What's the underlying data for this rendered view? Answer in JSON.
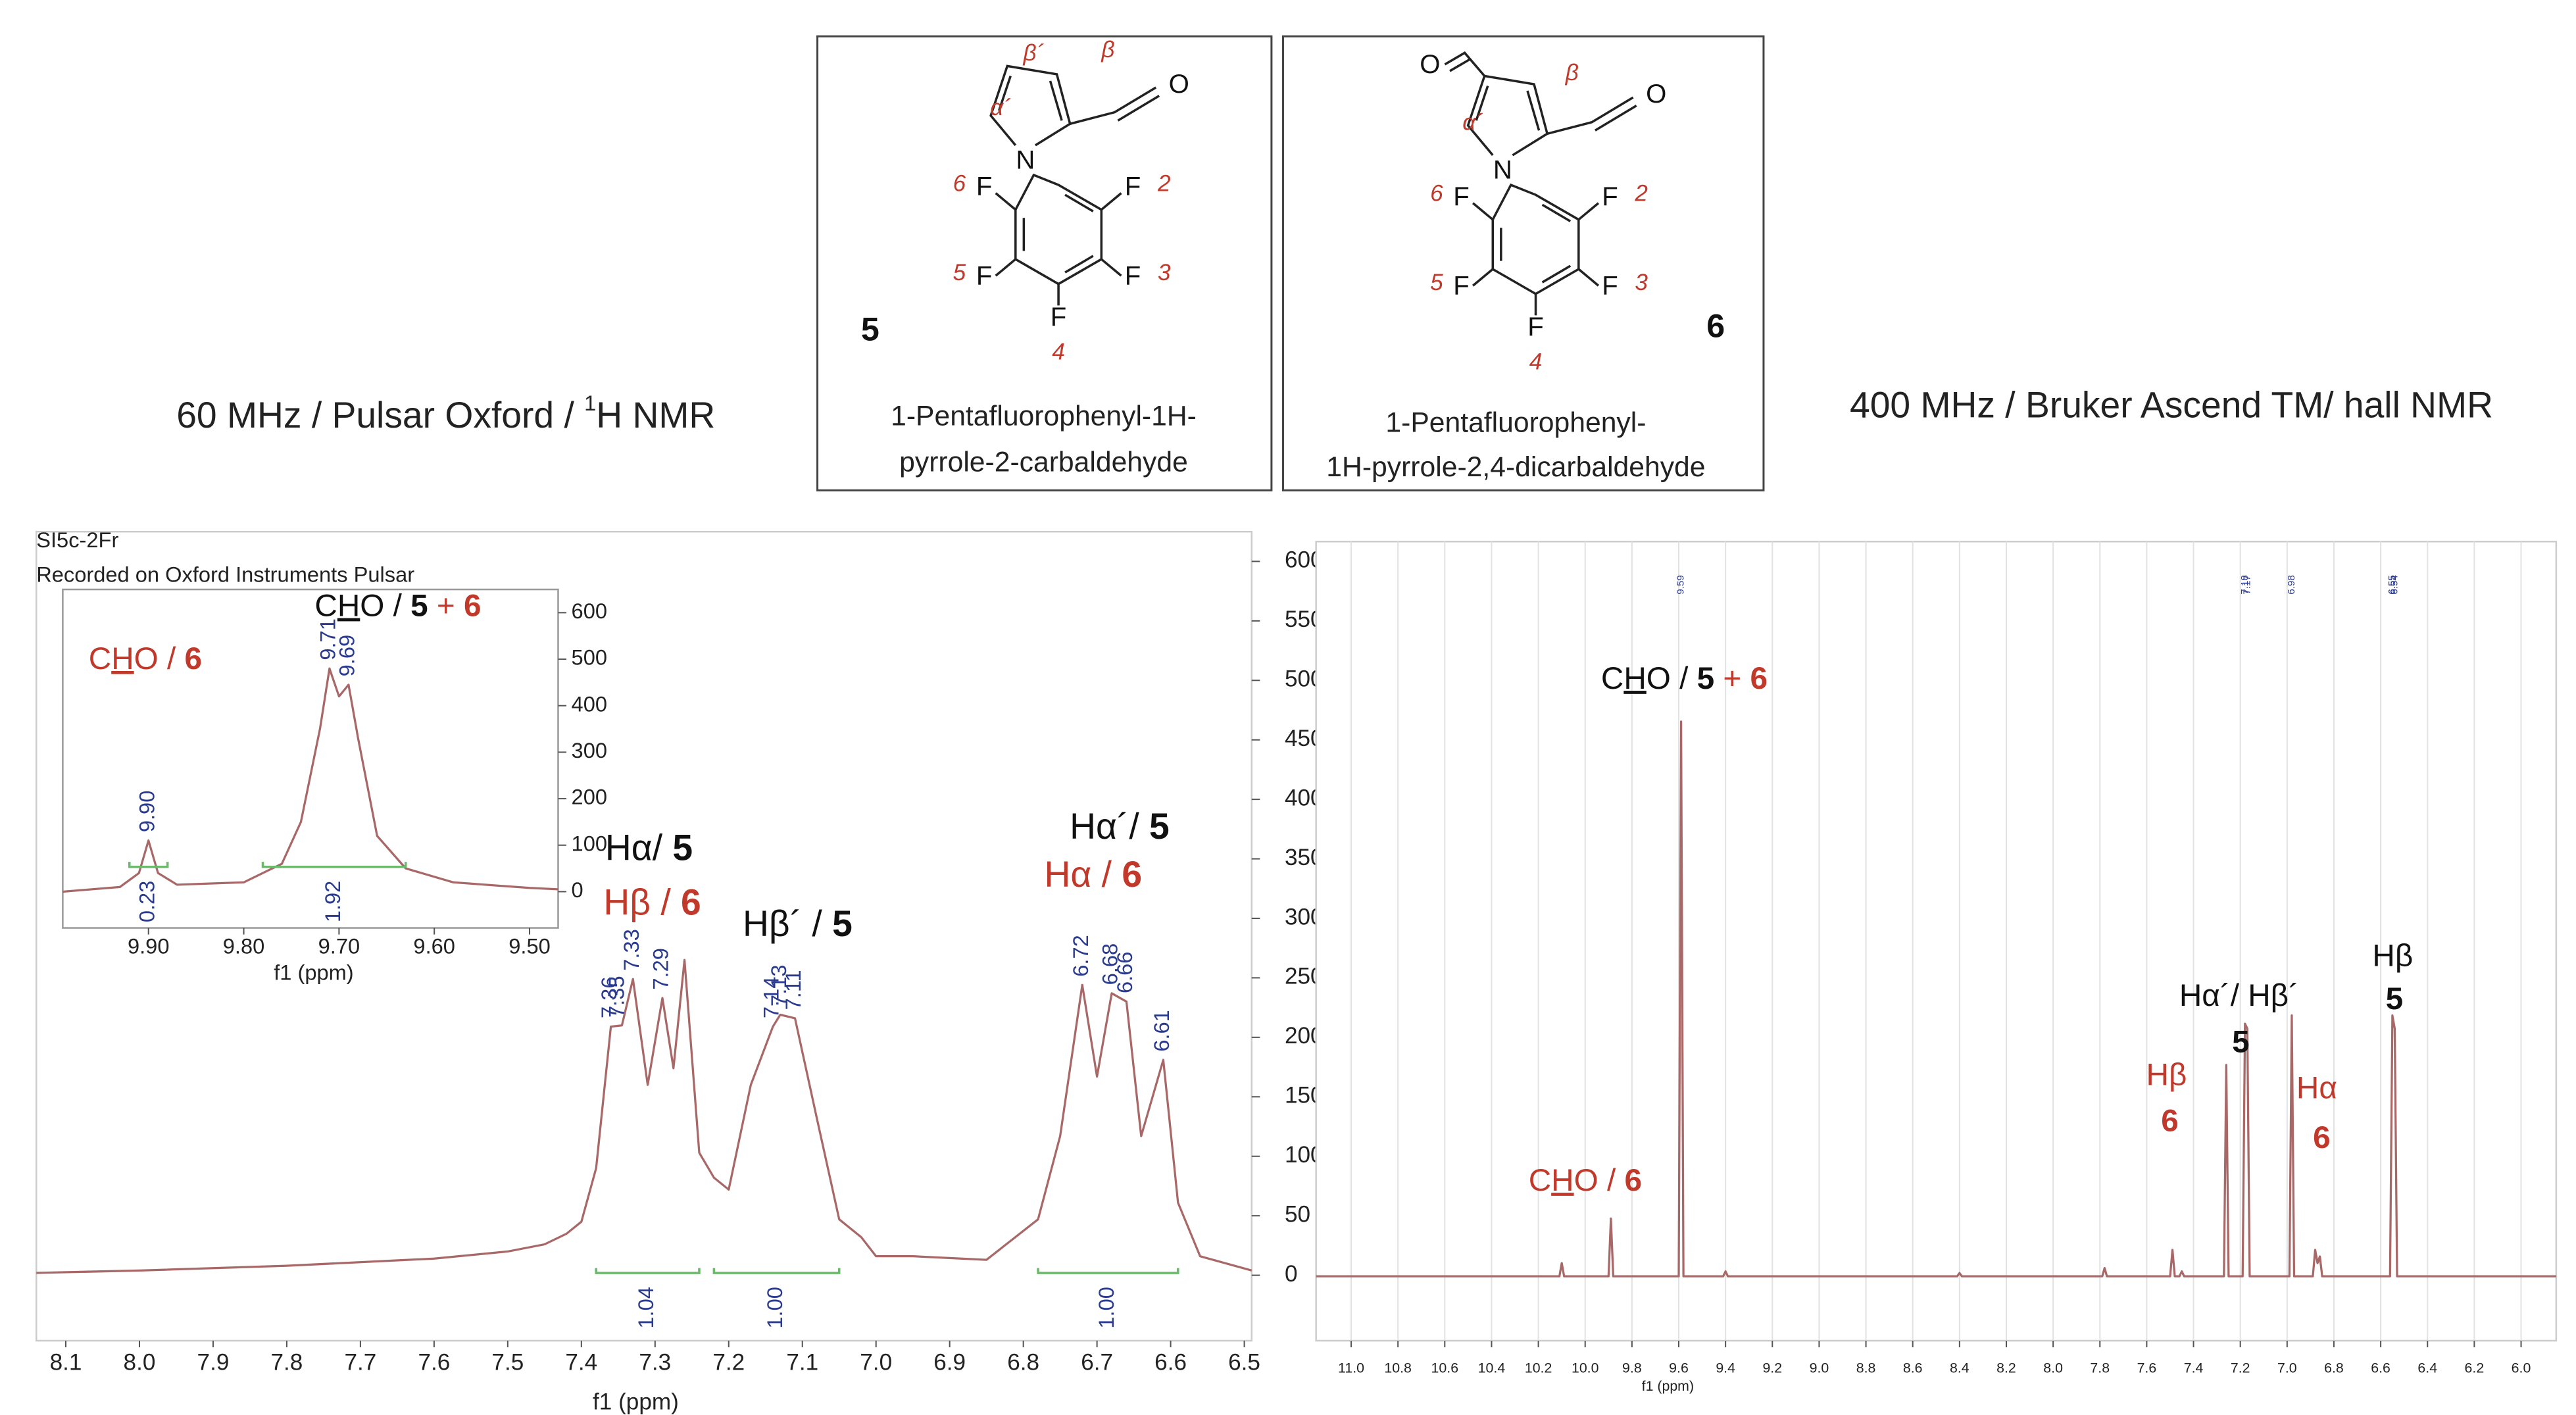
{
  "header": {
    "left_caption": [
      "60 MHz / Pulsar Oxford / ",
      "1",
      "H NMR"
    ],
    "right_caption": "400 MHz / Bruker Ascend TM/ hall NMR"
  },
  "compounds": [
    {
      "number": "5",
      "name_lines": [
        "1-Pentafluorophenyl-1H-",
        "pyrrole-2-carbaldehyde"
      ],
      "atom_labels": [
        "N",
        "O",
        "F",
        "F",
        "F",
        "F",
        "F"
      ],
      "position_labels": [
        "β´",
        "β",
        "α´",
        "6",
        "2",
        "5",
        "3",
        "4"
      ]
    },
    {
      "number": "6",
      "name_lines": [
        "1-Pentafluorophenyl-",
        "1H-pyrrole-2,4-dicarbaldehyde"
      ],
      "atom_labels": [
        "O",
        "N",
        "O",
        "F",
        "F",
        "F",
        "F",
        "F"
      ],
      "position_labels": [
        "β",
        "α´",
        "6",
        "2",
        "5",
        "3",
        "4"
      ]
    }
  ],
  "chart_data": [
    {
      "type": "line",
      "title": "SI5c-2Fr",
      "subtitle": "Recorded on Oxford Instruments Pulsar",
      "x_label": "f1 (ppm)",
      "color": "#a86868",
      "x": [
        8.14,
        8.0,
        7.8,
        7.6,
        7.5,
        7.45,
        7.42,
        7.4,
        7.38,
        7.36,
        7.345,
        7.33,
        7.31,
        7.29,
        7.275,
        7.26,
        7.24,
        7.22,
        7.2,
        7.17,
        7.14,
        7.13,
        7.11,
        7.08,
        7.05,
        7.02,
        7.0,
        6.95,
        6.85,
        6.78,
        6.75,
        6.72,
        6.7,
        6.68,
        6.66,
        6.64,
        6.61,
        6.59,
        6.56,
        6.49
      ],
      "values": [
        2,
        4,
        8,
        14,
        20,
        26,
        35,
        45,
        90,
        209,
        210,
        249,
        160,
        233,
        174,
        265,
        103,
        82,
        72,
        160,
        209,
        219,
        216,
        131,
        47,
        32,
        16,
        16,
        13,
        47,
        117,
        244,
        167,
        237,
        230,
        117,
        181,
        61,
        16,
        4
      ],
      "xlim": [
        8.14,
        6.49
      ],
      "xticks": [
        8.1,
        {
          "value": 8,
          "label": "8.0"
        },
        7.9,
        7.8,
        7.7,
        7.6,
        7.5,
        7.4,
        7.3,
        7.2,
        7.1,
        {
          "value": 7,
          "label": "7.0"
        },
        6.9,
        6.8,
        6.7,
        6.6,
        6.5
      ],
      "ylim": [
        -55,
        625
      ],
      "yticks": [
        0,
        50,
        100,
        150,
        200,
        250,
        300,
        350,
        400,
        450,
        500,
        550,
        600
      ],
      "peak_labels": [
        7.36,
        7.35,
        7.33,
        7.29,
        7.14,
        7.13,
        7.11,
        6.72,
        6.68,
        6.66,
        6.61
      ],
      "integrals": [
        {
          "from": 7.38,
          "to": 7.24,
          "value": 1.04
        },
        {
          "from": 7.22,
          "to": 7.05,
          "value": {
            "value": 1,
            "label": "1.00"
          }
        },
        {
          "from": 6.78,
          "to": 6.59,
          "value": {
            "value": 1,
            "label": "1.00"
          }
        }
      ],
      "annotations": [
        {
          "parts": [
            {
              "text": "Hα/ "
            },
            {
              "text": "5",
              "bold": true
            }
          ]
        },
        {
          "parts": [
            {
              "text": "Hβ / ",
              "color": "#c0392b"
            },
            {
              "text": "6",
              "bold": true,
              "color": "#c0392b"
            }
          ]
        },
        {
          "parts": [
            {
              "text": "Hβ´ / "
            },
            {
              "text": "5",
              "bold": true
            }
          ]
        },
        {
          "parts": [
            {
              "text": "Hα´/ "
            },
            {
              "text": "5",
              "bold": true
            }
          ]
        },
        {
          "parts": [
            {
              "text": "Hα  / ",
              "color": "#c0392b"
            },
            {
              "text": "6",
              "bold": true,
              "color": "#c0392b"
            }
          ]
        }
      ]
    },
    {
      "type": "line",
      "x_label": "f1 (ppm)",
      "color": "#a86868",
      "x": [
        9.99,
        9.93,
        9.91,
        9.9,
        9.89,
        9.87,
        9.8,
        9.76,
        9.74,
        9.72,
        9.71,
        9.7,
        9.69,
        9.68,
        9.66,
        9.63,
        9.58,
        9.5,
        9.47
      ],
      "values": [
        0,
        10,
        40,
        110,
        40,
        15,
        20,
        60,
        150,
        350,
        480,
        420,
        445,
        330,
        120,
        50,
        20,
        8,
        5
      ],
      "xlim": [
        9.99,
        9.47
      ],
      "xticks": [
        {
          "value": 9.9,
          "label": "9.90"
        },
        {
          "value": 9.8,
          "label": "9.80"
        },
        {
          "value": 9.7,
          "label": "9.70"
        },
        {
          "value": 9.6,
          "label": "9.60"
        },
        {
          "value": 9.5,
          "label": "9.50"
        }
      ],
      "ylim": [
        -78,
        650
      ],
      "yticks": [
        0,
        100,
        200,
        300,
        400,
        500,
        600
      ],
      "peak_labels": [
        {
          "value": 9.9,
          "label": "9.90"
        },
        9.71,
        9.69
      ],
      "integrals": [
        {
          "from": 9.92,
          "to": 9.88,
          "value": 0.23
        },
        {
          "from": 9.78,
          "to": 9.63,
          "value": 1.92
        }
      ],
      "annotations": [
        {
          "parts": [
            {
              "text": "C",
              "color": "#c0392b"
            },
            {
              "text": "H",
              "underline": true,
              "color": "#c0392b"
            },
            {
              "text": "O / ",
              "color": "#c0392b"
            },
            {
              "text": "6",
              "bold": true,
              "color": "#c0392b"
            }
          ]
        },
        {
          "parts": [
            {
              "text": "C"
            },
            {
              "text": "H",
              "underline": true
            },
            {
              "text": "O / "
            },
            {
              "text": "5",
              "bold": true
            },
            {
              "text": " + ",
              "color": "#c0392b"
            },
            {
              "text": "6",
              "bold": true,
              "color": "#c0392b"
            }
          ]
        }
      ]
    },
    {
      "type": "line",
      "x_label": "f1 (ppm)",
      "color": "#a86868",
      "grid": true,
      "x": [
        11.15,
        10.11,
        10.1,
        10.09,
        9.9,
        9.89,
        9.88,
        9.6,
        9.59,
        9.58,
        9.41,
        9.4,
        9.39,
        8.41,
        8.4,
        8.39,
        7.79,
        7.78,
        7.77,
        7.5,
        7.49,
        7.48,
        7.46,
        7.45,
        7.44,
        7.27,
        7.26,
        7.25,
        7.19,
        7.18,
        7.17,
        7.16,
        6.99,
        6.98,
        6.97,
        6.89,
        6.88,
        6.87,
        6.86,
        6.85,
        6.56,
        6.55,
        6.54,
        6.53,
        5.85
      ],
      "values": [
        0,
        0,
        8,
        0,
        0,
        35,
        0,
        0,
        336,
        0,
        0,
        3,
        0,
        0,
        2,
        0,
        0,
        5,
        0,
        0,
        16,
        0,
        0,
        3,
        0,
        0,
        128,
        0,
        0,
        153,
        150,
        0,
        0,
        158,
        0,
        0,
        16,
        8,
        12,
        0,
        0,
        158,
        150,
        0,
        0
      ],
      "xlim": [
        11.15,
        5.85
      ],
      "xticks": [
        {
          "value": 11,
          "label": "11.0"
        },
        10.8,
        10.6,
        10.4,
        10.2,
        {
          "value": 10,
          "label": "10.0"
        },
        9.8,
        9.6,
        9.4,
        9.2,
        {
          "value": 9,
          "label": "9.0"
        },
        8.8,
        8.6,
        8.4,
        8.2,
        {
          "value": 8,
          "label": "8.0"
        },
        7.8,
        7.6,
        7.4,
        7.2,
        {
          "value": 7,
          "label": "7.0"
        },
        6.8,
        6.6,
        6.4,
        6.2,
        {
          "value": 6,
          "label": "6.0"
        }
      ],
      "ylim": [
        -39,
        445
      ],
      "peak_labels": [
        9.59,
        7.18,
        7.17,
        6.98,
        6.55,
        6.55,
        6.54
      ],
      "annotations": [
        {
          "parts": [
            {
              "text": "C"
            },
            {
              "text": "H",
              "underline": true
            },
            {
              "text": "O / "
            },
            {
              "text": "5",
              "bold": true
            },
            {
              "text": " + ",
              "color": "#c0392b"
            },
            {
              "text": "6",
              "bold": true,
              "color": "#c0392b"
            }
          ]
        },
        {
          "parts": [
            {
              "text": "C",
              "color": "#c0392b"
            },
            {
              "text": "H",
              "underline": true,
              "color": "#c0392b"
            },
            {
              "text": "O / ",
              "color": "#c0392b"
            },
            {
              "text": "6",
              "bold": true,
              "color": "#c0392b"
            }
          ]
        },
        {
          "parts": [
            {
              "text": "Hα´/ Hβ´"
            }
          ]
        },
        {
          "parts": [
            {
              "text": "5",
              "bold": true
            }
          ]
        },
        {
          "parts": [
            {
              "text": "Hβ",
              "color": "#c0392b"
            }
          ]
        },
        {
          "parts": [
            {
              "text": "6",
              "bold": true,
              "color": "#c0392b"
            }
          ]
        },
        {
          "parts": [
            {
              "text": "Hα",
              "color": "#c0392b"
            }
          ]
        },
        {
          "parts": [
            {
              "text": "6",
              "bold": true,
              "color": "#c0392b"
            }
          ]
        },
        {
          "parts": [
            {
              "text": "Hβ"
            }
          ]
        },
        {
          "parts": [
            {
              "text": "5",
              "bold": true
            }
          ]
        }
      ]
    }
  ]
}
